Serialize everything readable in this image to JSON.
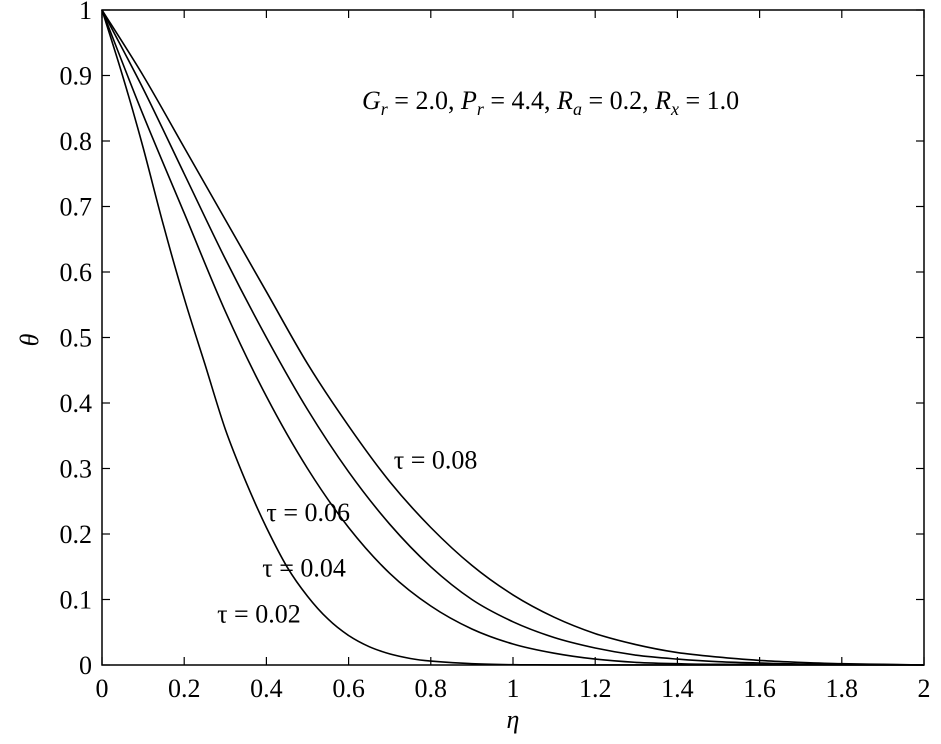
{
  "chart_data": {
    "type": "line",
    "xlabel": "η",
    "ylabel": "θ",
    "xlim": [
      0,
      2
    ],
    "ylim": [
      0,
      1
    ],
    "x_ticks": [
      "0",
      "0.2",
      "0.4",
      "0.6",
      "0.8",
      "1",
      "1.2",
      "1.4",
      "1.6",
      "1.8",
      "2"
    ],
    "y_ticks": [
      "0",
      "0.1",
      "0.2",
      "0.3",
      "0.4",
      "0.5",
      "0.6",
      "0.7",
      "0.8",
      "0.9",
      "1"
    ],
    "grid": false,
    "legend": "none",
    "parameters": {
      "Gr": "2.0",
      "Pr": "4.4",
      "Ra": "0.2",
      "Rx": "1.0"
    },
    "annotation_parts": {
      "g": "G",
      "g_sub": "r",
      "g_val": " = 2.0, ",
      "p": "P",
      "p_sub": "r",
      "p_val": " = 4.4, ",
      "ra": "R",
      "ra_sub": "a",
      "ra_val": " = 0.2, ",
      "rx": "R",
      "rx_sub": "x",
      "rx_val": " = 1.0"
    },
    "series": [
      {
        "name": "τ = 0.02",
        "x": [
          0,
          0.05,
          0.1,
          0.15,
          0.2,
          0.25,
          0.3,
          0.35,
          0.4,
          0.45,
          0.5,
          0.55,
          0.6,
          0.65,
          0.7,
          0.75,
          0.8,
          0.9,
          1.0,
          1.1,
          1.2,
          2.0
        ],
        "values": [
          1.0,
          0.9,
          0.79,
          0.67,
          0.56,
          0.46,
          0.36,
          0.28,
          0.21,
          0.15,
          0.105,
          0.07,
          0.045,
          0.028,
          0.017,
          0.01,
          0.006,
          0.002,
          0.0005,
          0.0002,
          0.0001,
          0.0
        ]
      },
      {
        "name": "τ = 0.04",
        "x": [
          0,
          0.1,
          0.2,
          0.3,
          0.4,
          0.5,
          0.6,
          0.7,
          0.8,
          0.9,
          1.0,
          1.1,
          1.2,
          1.3,
          1.4,
          1.5,
          2.0
        ],
        "values": [
          1.0,
          0.84,
          0.69,
          0.54,
          0.41,
          0.3,
          0.21,
          0.14,
          0.09,
          0.055,
          0.032,
          0.018,
          0.009,
          0.004,
          0.002,
          0.001,
          0.0
        ]
      },
      {
        "name": "τ = 0.06",
        "x": [
          0,
          0.1,
          0.2,
          0.3,
          0.4,
          0.5,
          0.6,
          0.7,
          0.8,
          0.9,
          1.0,
          1.1,
          1.2,
          1.3,
          1.4,
          1.5,
          1.6,
          1.7,
          2.0
        ],
        "values": [
          1.0,
          0.88,
          0.75,
          0.62,
          0.5,
          0.39,
          0.295,
          0.215,
          0.15,
          0.1,
          0.066,
          0.042,
          0.026,
          0.015,
          0.009,
          0.005,
          0.003,
          0.0015,
          0.0
        ]
      },
      {
        "name": "τ = 0.08",
        "x": [
          0,
          0.1,
          0.2,
          0.3,
          0.4,
          0.5,
          0.6,
          0.7,
          0.8,
          0.9,
          1.0,
          1.1,
          1.2,
          1.3,
          1.4,
          1.5,
          1.6,
          1.7,
          1.8,
          1.9,
          2.0
        ],
        "values": [
          1.0,
          0.9,
          0.79,
          0.68,
          0.57,
          0.46,
          0.365,
          0.28,
          0.21,
          0.152,
          0.107,
          0.073,
          0.048,
          0.031,
          0.019,
          0.012,
          0.007,
          0.004,
          0.002,
          0.001,
          0.0
        ]
      }
    ],
    "curve_labels": [
      {
        "text": "τ = 0.08",
        "x": 0.71,
        "y": 0.3
      },
      {
        "text": "τ = 0.06",
        "x": 0.4,
        "y": 0.22
      },
      {
        "text": "τ = 0.04",
        "x": 0.39,
        "y": 0.135
      },
      {
        "text": "τ = 0.02",
        "x": 0.28,
        "y": 0.065
      }
    ]
  }
}
